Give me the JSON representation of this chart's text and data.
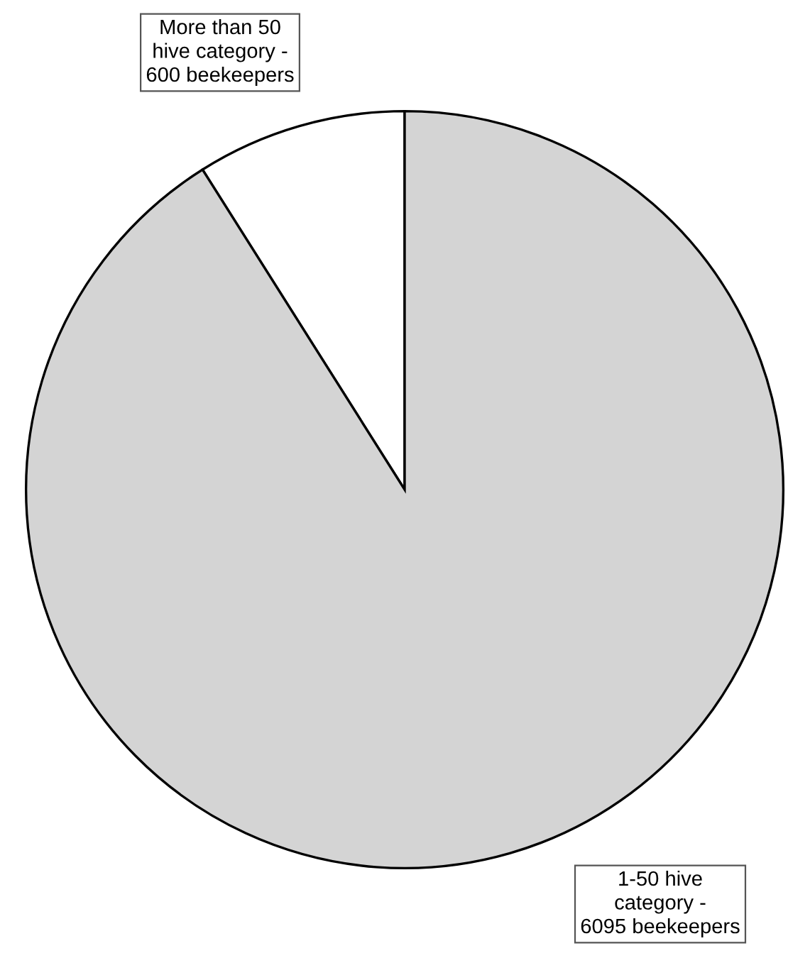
{
  "chart_data": {
    "type": "pie",
    "categories": [
      "More than 50\nhive category -\n600 beekeepers",
      "1-50 hive\ncategory -\n6095 beekeepers"
    ],
    "values": [
      600,
      6095
    ],
    "colors": [
      "#ffffff",
      "#d4d4d4"
    ]
  }
}
